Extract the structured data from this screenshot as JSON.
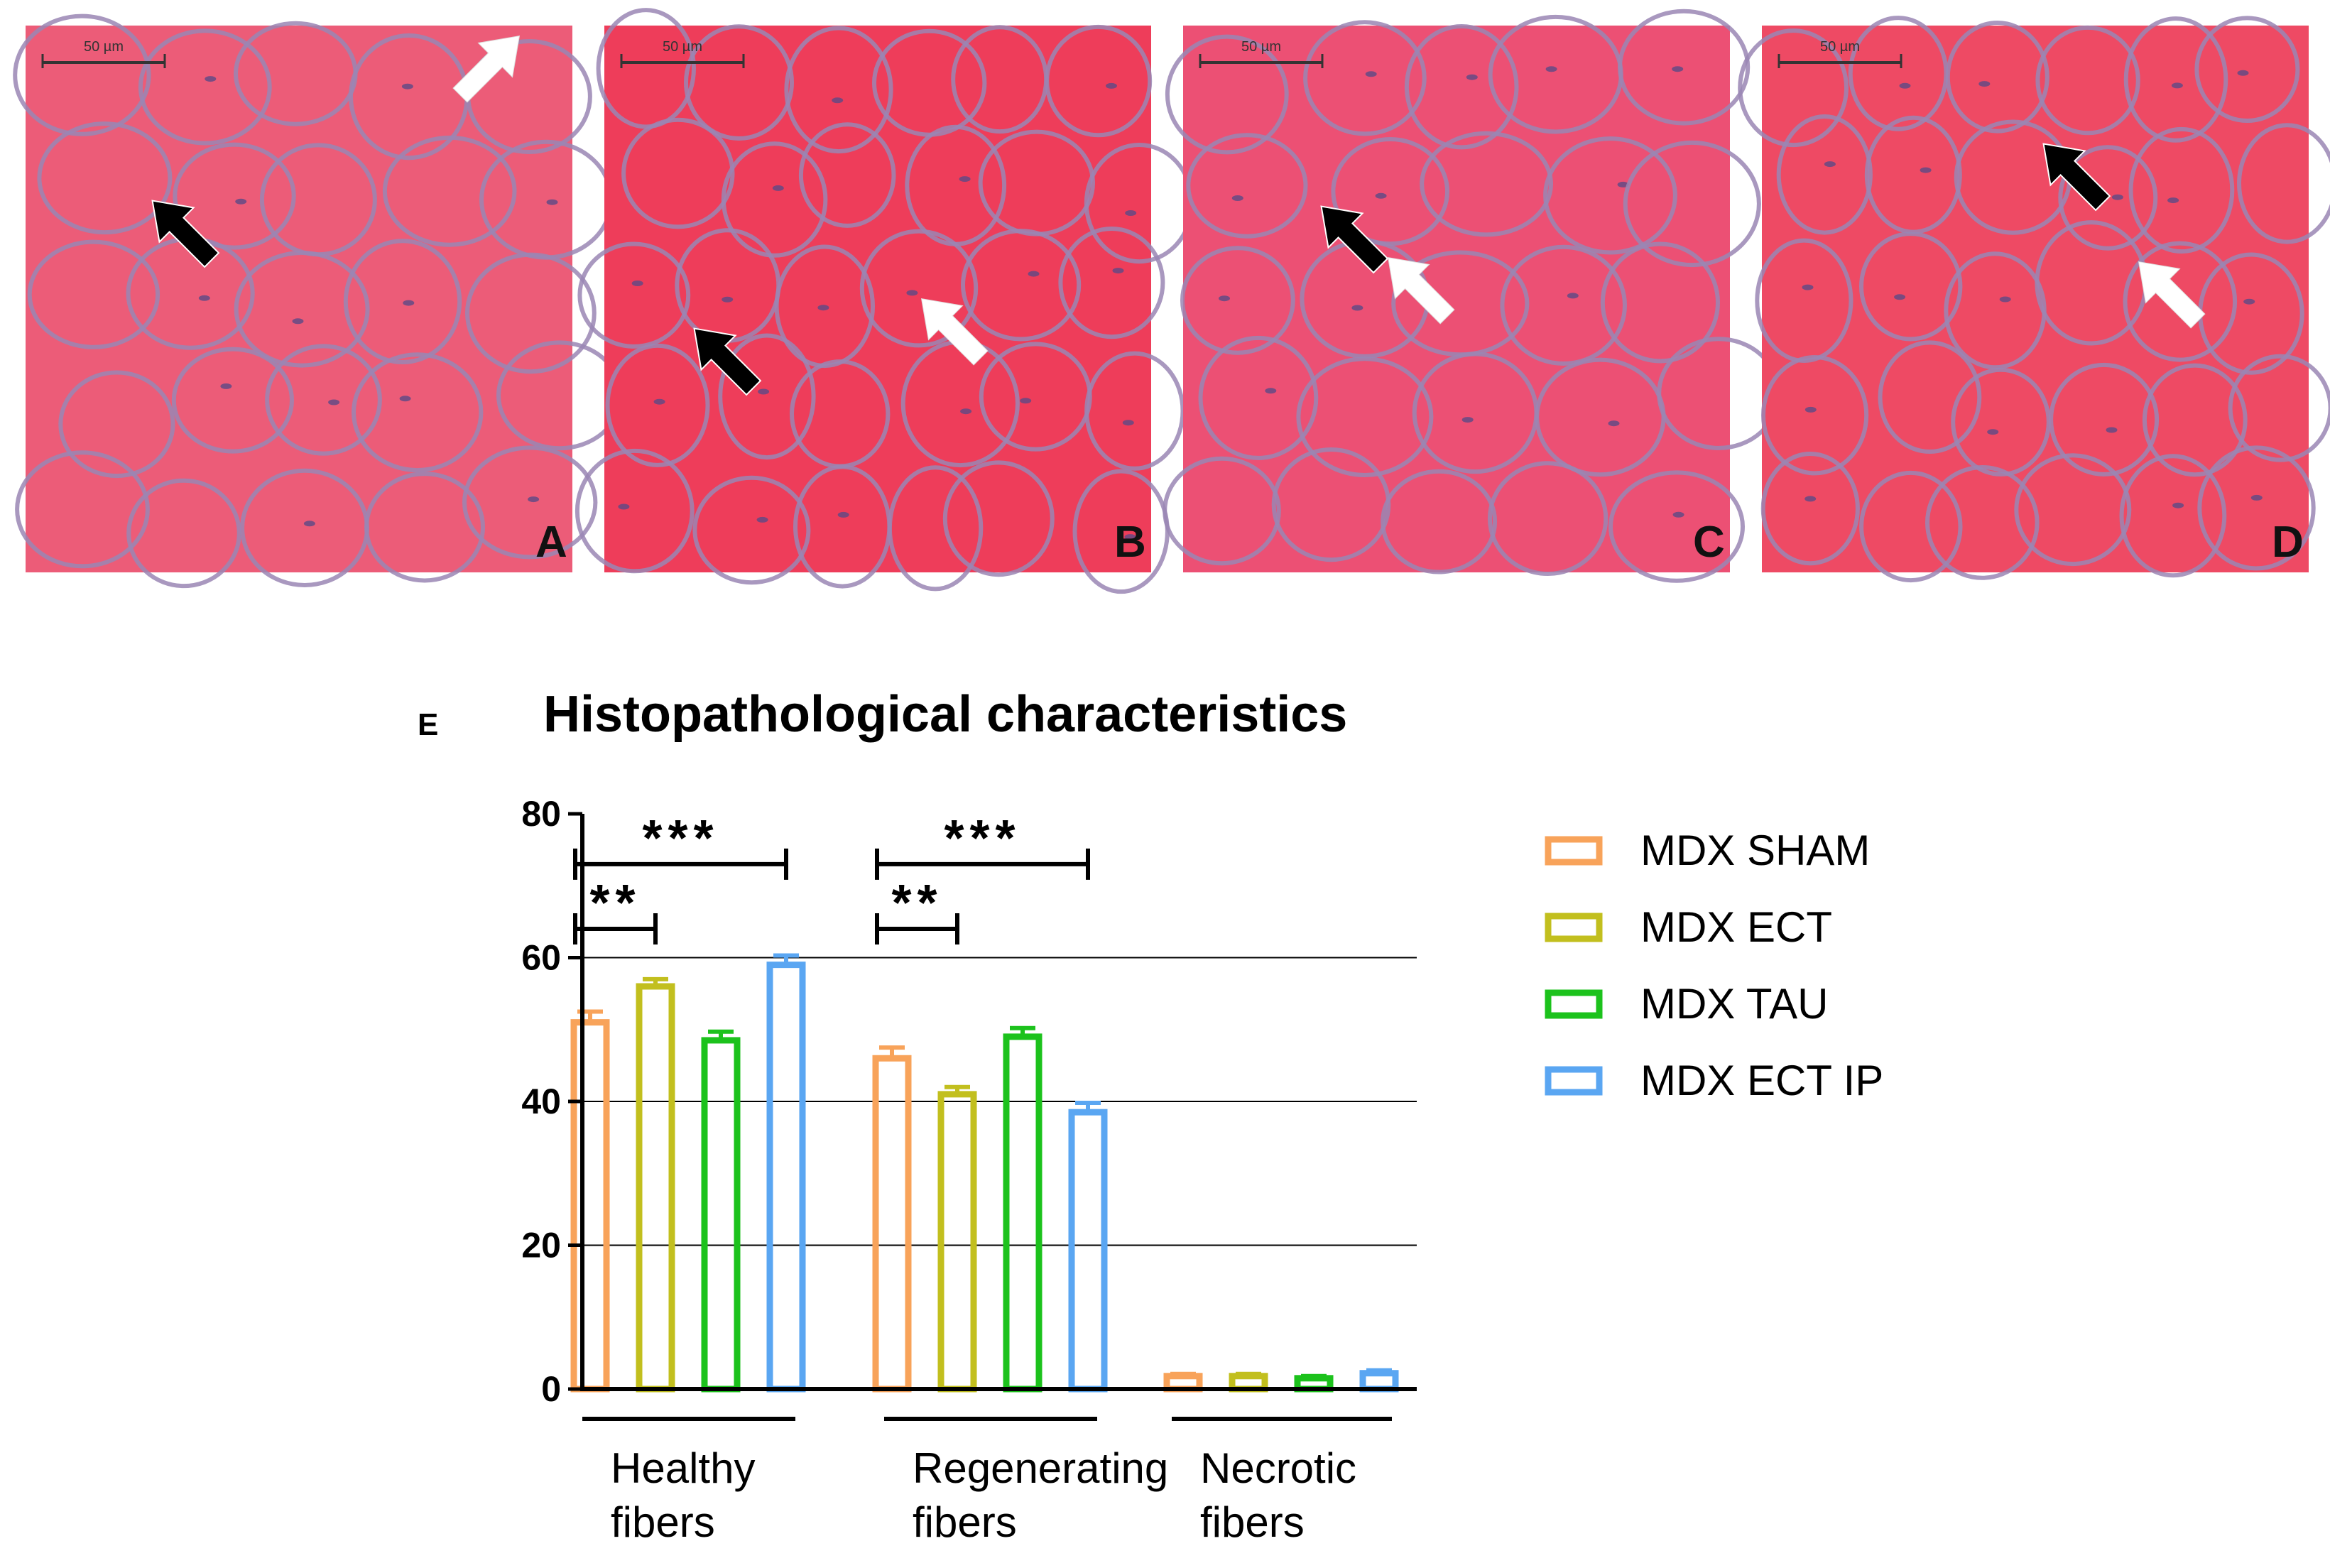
{
  "panels": [
    {
      "letter": "A",
      "scale_label": "50 µm"
    },
    {
      "letter": "B",
      "scale_label": "50 µm"
    },
    {
      "letter": "C",
      "scale_label": "50 µm"
    },
    {
      "letter": "D",
      "scale_label": "50 µm"
    }
  ],
  "colors": {
    "tissue": "#ec5c78",
    "tissue_b": "#ee3d5a",
    "membrane": "#9a86b4",
    "nucleus": "#5b4a86",
    "axis": "#000000",
    "grid": "#000000"
  },
  "chart_data": {
    "type": "bar",
    "panel_label": "E",
    "title": "Histopathological characteristics",
    "categories": [
      {
        "line1": "Healthy",
        "line2": "fibers"
      },
      {
        "line1": "Regenerating",
        "line2": "fibers"
      },
      {
        "line1": "Necrotic",
        "line2": "fibers"
      }
    ],
    "series": [
      {
        "name": "MDX SHAM",
        "color": "#f8a35a",
        "values": [
          51,
          46,
          1.8
        ],
        "errors": [
          1.5,
          1.5,
          0.3
        ]
      },
      {
        "name": "MDX ECT",
        "color": "#c2bf1e",
        "values": [
          56,
          41,
          1.8
        ],
        "errors": [
          1.0,
          1.0,
          0.3
        ]
      },
      {
        "name": "MDX TAU",
        "color": "#1cc21c",
        "values": [
          48.5,
          49,
          1.5
        ],
        "errors": [
          1.2,
          1.2,
          0.3
        ]
      },
      {
        "name": "MDX ECT IP",
        "color": "#5aa6f2",
        "values": [
          59,
          38.5,
          2.2
        ],
        "errors": [
          1.3,
          1.3,
          0.4
        ]
      }
    ],
    "ylim": [
      0,
      80
    ],
    "yticks": [
      0,
      20,
      40,
      60,
      80
    ],
    "gridlines": [
      20,
      40,
      60
    ],
    "significance": [
      {
        "category": 0,
        "from": 0,
        "to": 1,
        "label": "**",
        "y": 64
      },
      {
        "category": 0,
        "from": 0,
        "to": 3,
        "label": "***",
        "y": 73
      },
      {
        "category": 1,
        "from": 0,
        "to": 1,
        "label": "**",
        "y": 64
      },
      {
        "category": 1,
        "from": 0,
        "to": 3,
        "label": "***",
        "y": 73
      }
    ],
    "legend_position": "right"
  }
}
